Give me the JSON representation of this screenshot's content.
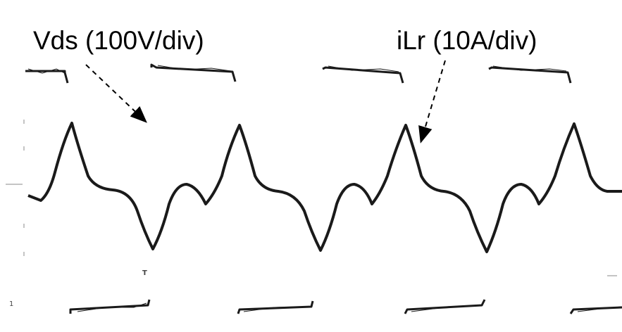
{
  "annotations": {
    "vds": "Vds (100V/div)",
    "ilr": "iLr (10A/div)"
  },
  "markers": {
    "channel": "1",
    "trigger": "T"
  },
  "colors": {
    "trace": "#1a1a1a",
    "arrow": "#000000",
    "background": "#ffffff"
  },
  "chart_data": {
    "type": "line",
    "title": "",
    "xlabel": "",
    "ylabel": "",
    "grid": false,
    "series": [
      {
        "name": "Vds",
        "scale": "100V/div",
        "shape": "square",
        "period_fraction": 0.27,
        "high_segments": [
          [
            0.04,
            0.105
          ],
          [
            0.25,
            0.37
          ],
          [
            0.515,
            0.645
          ],
          [
            0.79,
            0.91
          ]
        ],
        "low_segments": [
          [
            0.12,
            0.235
          ],
          [
            0.385,
            0.5
          ],
          [
            0.66,
            0.775
          ],
          [
            0.925,
            1.0
          ]
        ]
      },
      {
        "name": "iLr",
        "scale": "10A/div",
        "shape": "triangular-resonant",
        "peaks_x": [
          0.115,
          0.385,
          0.655,
          0.925
        ],
        "troughs_x": [
          0.245,
          0.515,
          0.785
        ],
        "secondary_bumps_x": [
          0.058,
          0.33,
          0.56,
          0.83
        ]
      }
    ]
  }
}
